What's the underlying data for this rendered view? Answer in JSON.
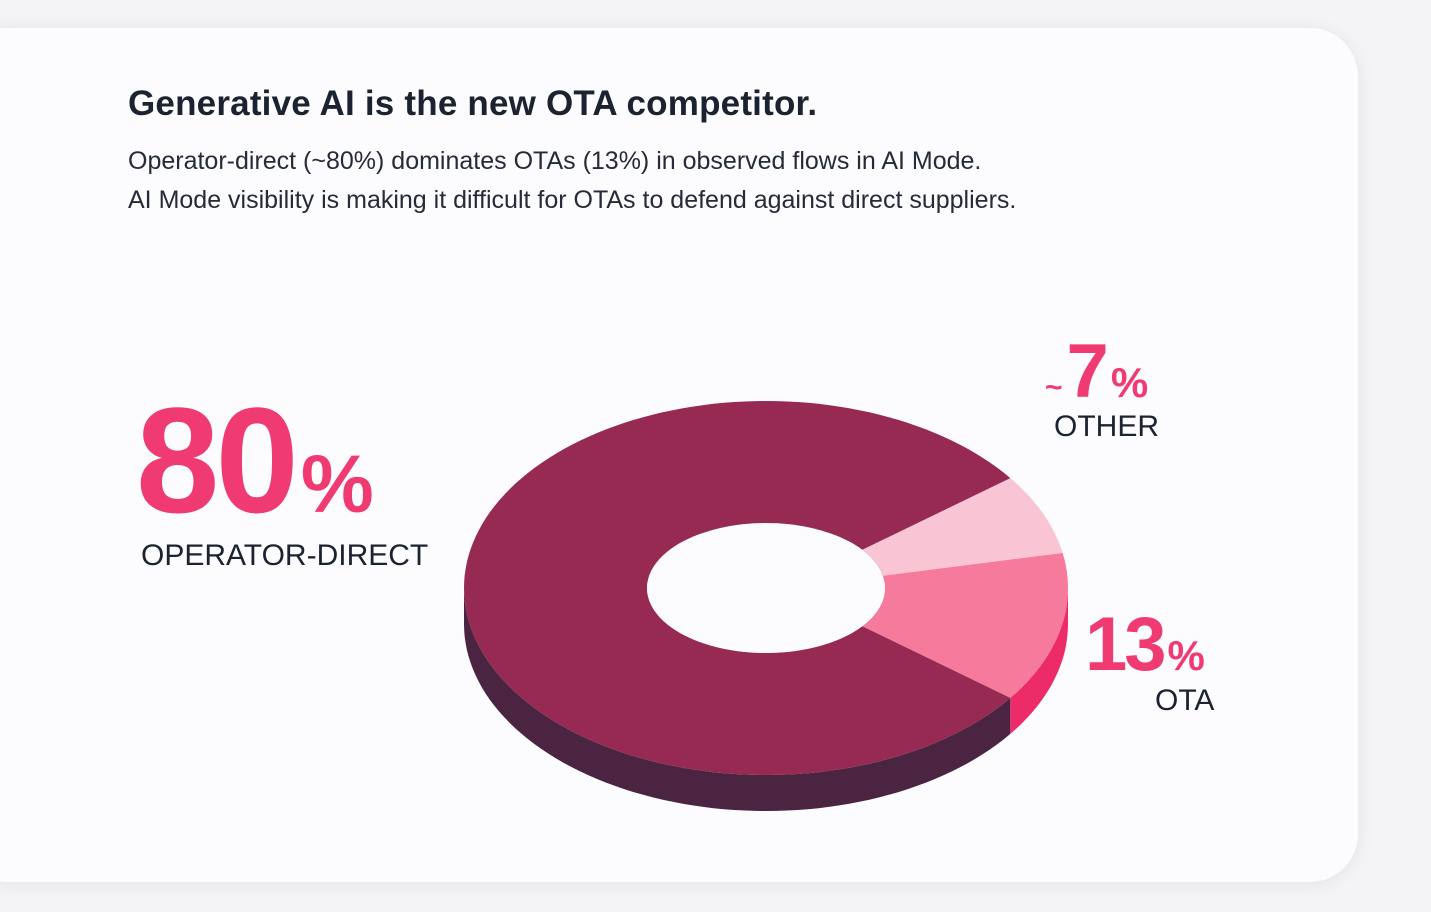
{
  "header": {
    "title": "Generative AI is the new OTA competitor.",
    "subtitle_line1": "Operator-direct (~80%) dominates OTAs (13%) in observed flows in AI Mode.",
    "subtitle_line2": "AI Mode visibility is making it difficult for OTAs to defend against direct suppliers."
  },
  "chart_data": {
    "type": "pie",
    "style": "3d-donut",
    "title": "Generative AI is the new OTA competitor.",
    "slices": [
      {
        "name": "OPERATOR-DIRECT",
        "value": 80,
        "number": "80",
        "percent": "%",
        "prefix": "",
        "color": "#962a52",
        "side_color": "#4a2440"
      },
      {
        "name": "OTHER",
        "value": 7,
        "number": "7",
        "percent": "%",
        "prefix": "~",
        "color": "#f9c4d4",
        "side_color": "#e892ad"
      },
      {
        "name": "OTA",
        "value": 13,
        "number": "13",
        "percent": "%",
        "prefix": "",
        "color": "#f57a9c",
        "side_color": "#ee2b69"
      }
    ],
    "label_color": "#ef3a72",
    "category_color": "#1b2230"
  }
}
